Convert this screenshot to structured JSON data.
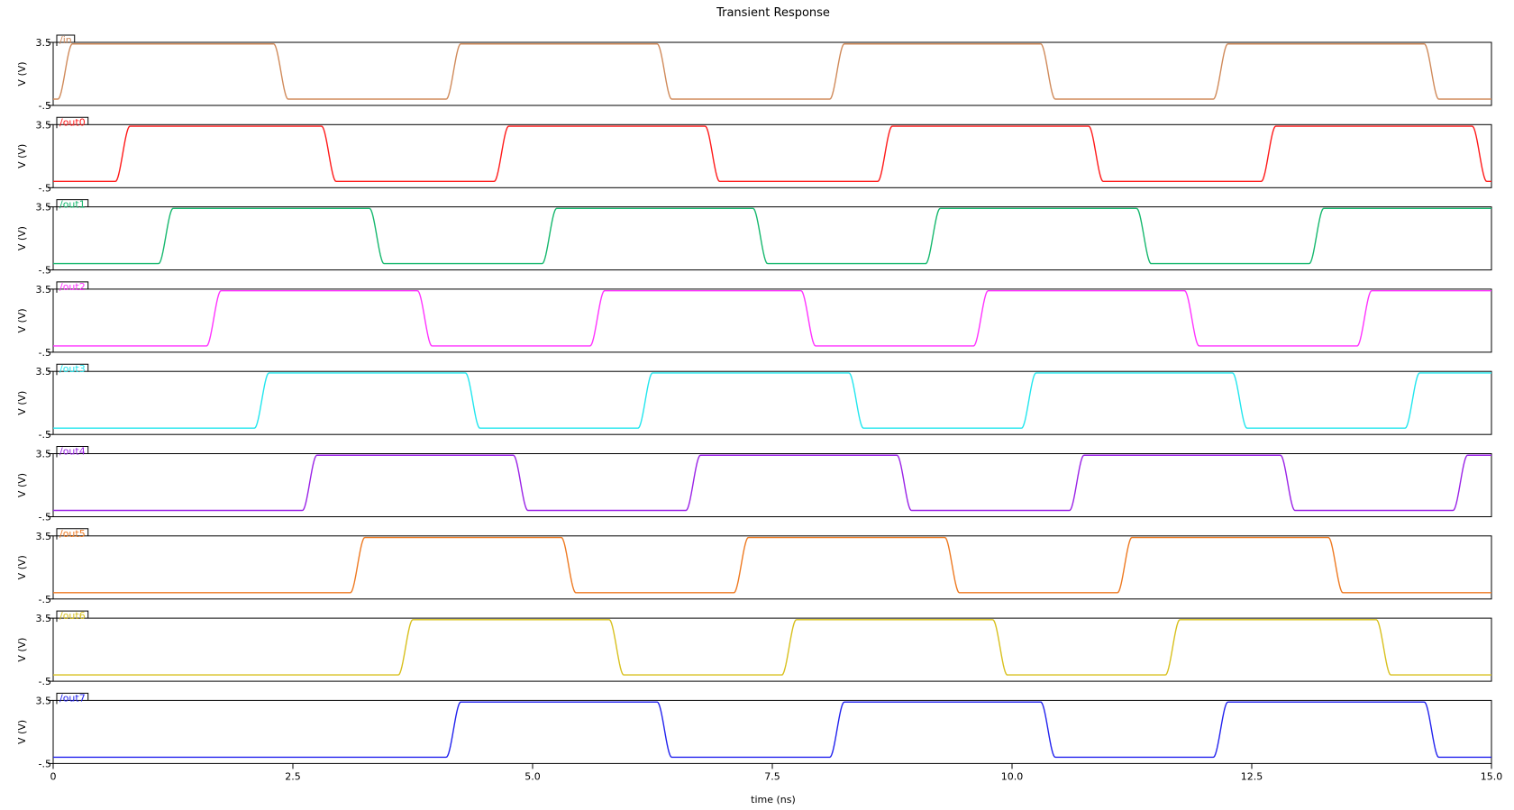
{
  "chart_data": {
    "type": "line",
    "title": "Transient Response",
    "xlabel": "time (ns)",
    "ylabel": "V (V)",
    "xlim": [
      0,
      15
    ],
    "ylim": [
      -0.5,
      3.5
    ],
    "x_ticks": [
      "0",
      "2.5",
      "5.0",
      "7.5",
      "10.0",
      "12.5",
      "15.0"
    ],
    "x_tick_values": [
      0,
      2.5,
      5,
      7.5,
      10,
      12.5,
      15
    ],
    "y_tick_labels": {
      "top": "3.5",
      "bottom": "-.5"
    },
    "low_level": -0.1,
    "high_level": 3.4,
    "edge_time": 0.15,
    "grid": false,
    "series": [
      {
        "name": "/in",
        "color": "#d08a5a",
        "rise": [
          0.05,
          4.1,
          8.1,
          12.1
        ],
        "fall": [
          2.3,
          6.3,
          10.3,
          14.3
        ]
      },
      {
        "name": "/out0",
        "color": "#ff1a1a",
        "rise": [
          0.65,
          4.6,
          8.6,
          12.6
        ],
        "fall": [
          2.8,
          6.8,
          10.8,
          14.8
        ]
      },
      {
        "name": "/out1",
        "color": "#16b86e",
        "rise": [
          1.1,
          5.1,
          9.1,
          13.1
        ],
        "fall": [
          3.3,
          7.3,
          11.3
        ]
      },
      {
        "name": "/out2",
        "color": "#ff33ff",
        "rise": [
          1.6,
          5.6,
          9.6,
          13.6
        ],
        "fall": [
          3.8,
          7.8,
          11.8
        ]
      },
      {
        "name": "/out3",
        "color": "#22e6ee",
        "rise": [
          2.1,
          6.1,
          10.1,
          14.1
        ],
        "fall": [
          4.3,
          8.3,
          12.3
        ]
      },
      {
        "name": "/out4",
        "color": "#9a22e6",
        "rise": [
          2.6,
          6.6,
          10.6,
          14.6
        ],
        "fall": [
          4.8,
          8.8,
          12.8
        ]
      },
      {
        "name": "/out5",
        "color": "#ee7a22",
        "rise": [
          3.1,
          7.1,
          11.1
        ],
        "fall": [
          5.3,
          9.3,
          13.3
        ]
      },
      {
        "name": "/out6",
        "color": "#d8c01e",
        "rise": [
          3.6,
          7.6,
          11.6
        ],
        "fall": [
          5.8,
          9.8,
          13.8
        ]
      },
      {
        "name": "/out7",
        "color": "#2222ee",
        "rise": [
          4.1,
          8.1,
          12.1
        ],
        "fall": [
          6.3,
          10.3,
          14.3
        ]
      }
    ]
  }
}
